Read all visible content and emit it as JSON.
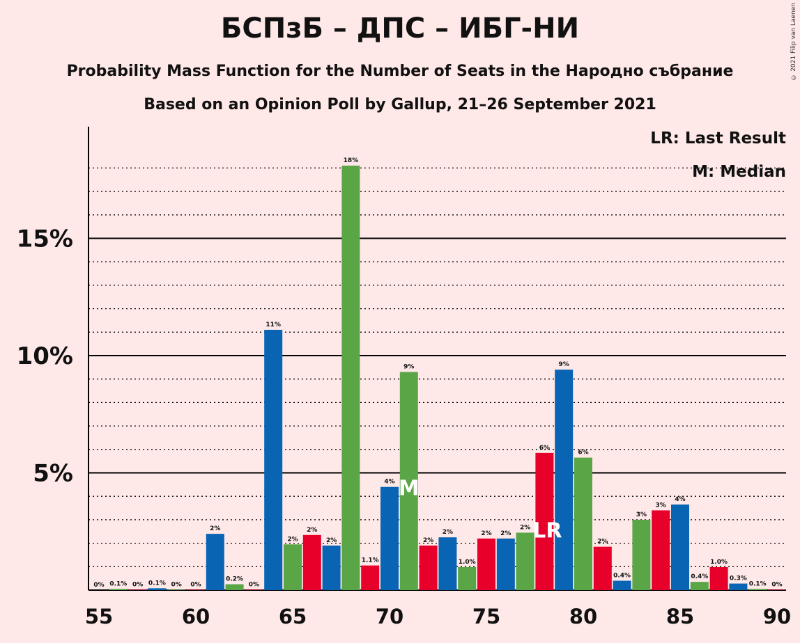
{
  "header": {
    "title": "БСПзБ – ДПС – ИБГ-НИ",
    "subtitle1": "Probability Mass Function for the Number of Seats in the Народно събрание",
    "subtitle2": "Based on an Opinion Poll by Gallup, 21–26 September 2021",
    "copyright": "© 2021 Filip van Laenen"
  },
  "legend": {
    "last_result": "LR: Last Result",
    "median": "M: Median"
  },
  "colors": {
    "background": "#ffe8e8",
    "blue": "#0a64b4",
    "green": "#5aa546",
    "red": "#e6002a"
  },
  "chart_data": {
    "type": "bar",
    "title": "БСПзБ – ДПС – ИБГ-НИ",
    "xlabel": "",
    "ylabel": "",
    "x_ticks": [
      55,
      60,
      65,
      70,
      75,
      80,
      85,
      90
    ],
    "y_ticks": [
      {
        "value": 5,
        "label": "5%"
      },
      {
        "value": 10,
        "label": "10%"
      },
      {
        "value": 15,
        "label": "15%"
      }
    ],
    "ylim": [
      0,
      19.5
    ],
    "xlim": [
      54.5,
      90.5
    ],
    "grid": "dotted every 1%, solid at 5%",
    "median_seat": 71,
    "median_label": "M",
    "last_result_seat": 78,
    "last_result_label": "LR",
    "bars": [
      {
        "seats": 55,
        "value": 0.0,
        "label": "0%",
        "color": "blue"
      },
      {
        "seats": 56,
        "value": 0.05,
        "label": "0.1%",
        "color": "green"
      },
      {
        "seats": 57,
        "value": 0.02,
        "label": "0%",
        "color": "red"
      },
      {
        "seats": 58,
        "value": 0.08,
        "label": "0.1%",
        "color": "blue"
      },
      {
        "seats": 59,
        "value": 0.02,
        "label": "0%",
        "color": "green"
      },
      {
        "seats": 60,
        "value": 0.02,
        "label": "0%",
        "color": "red"
      },
      {
        "seats": 61,
        "value": 2.4,
        "label": "2%",
        "color": "blue"
      },
      {
        "seats": 62,
        "value": 0.25,
        "label": "0.2%",
        "color": "green"
      },
      {
        "seats": 63,
        "value": 0.02,
        "label": "0%",
        "color": "red"
      },
      {
        "seats": 64,
        "value": 11.1,
        "label": "11%",
        "color": "blue"
      },
      {
        "seats": 65,
        "value": 1.95,
        "label": "2%",
        "color": "green"
      },
      {
        "seats": 66,
        "value": 2.35,
        "label": "2%",
        "color": "red"
      },
      {
        "seats": 67,
        "value": 1.9,
        "label": "2%",
        "color": "blue"
      },
      {
        "seats": 68,
        "value": 18.1,
        "label": "18%",
        "color": "green"
      },
      {
        "seats": 69,
        "value": 1.05,
        "label": "1.1%",
        "color": "red"
      },
      {
        "seats": 70,
        "value": 4.4,
        "label": "4%",
        "color": "blue"
      },
      {
        "seats": 71,
        "value": 9.3,
        "label": "9%",
        "color": "green"
      },
      {
        "seats": 72,
        "value": 1.9,
        "label": "2%",
        "color": "red"
      },
      {
        "seats": 73,
        "value": 2.25,
        "label": "2%",
        "color": "blue"
      },
      {
        "seats": 74,
        "value": 0.98,
        "label": "1.0%",
        "color": "green"
      },
      {
        "seats": 75,
        "value": 2.2,
        "label": "2%",
        "color": "red"
      },
      {
        "seats": 76,
        "value": 2.2,
        "label": "2%",
        "color": "blue"
      },
      {
        "seats": 77,
        "value": 2.45,
        "label": "2%",
        "color": "green"
      },
      {
        "seats": 78,
        "value": 5.85,
        "label": "6%",
        "color": "red"
      },
      {
        "seats": 79,
        "value": 9.4,
        "label": "9%",
        "color": "blue"
      },
      {
        "seats": 80,
        "value": 5.65,
        "label": "6%",
        "color": "green"
      },
      {
        "seats": 81,
        "value": 1.85,
        "label": "2%",
        "color": "red"
      },
      {
        "seats": 82,
        "value": 0.4,
        "label": "0.4%",
        "color": "blue"
      },
      {
        "seats": 83,
        "value": 3.0,
        "label": "3%",
        "color": "green"
      },
      {
        "seats": 84,
        "value": 3.4,
        "label": "3%",
        "color": "red"
      },
      {
        "seats": 85,
        "value": 3.65,
        "label": "4%",
        "color": "blue"
      },
      {
        "seats": 86,
        "value": 0.35,
        "label": "0.4%",
        "color": "green"
      },
      {
        "seats": 87,
        "value": 0.98,
        "label": "1.0%",
        "color": "red"
      },
      {
        "seats": 88,
        "value": 0.28,
        "label": "0.3%",
        "color": "blue"
      },
      {
        "seats": 89,
        "value": 0.05,
        "label": "0.1%",
        "color": "green"
      },
      {
        "seats": 90,
        "value": 0.02,
        "label": "0%",
        "color": "red"
      }
    ]
  }
}
